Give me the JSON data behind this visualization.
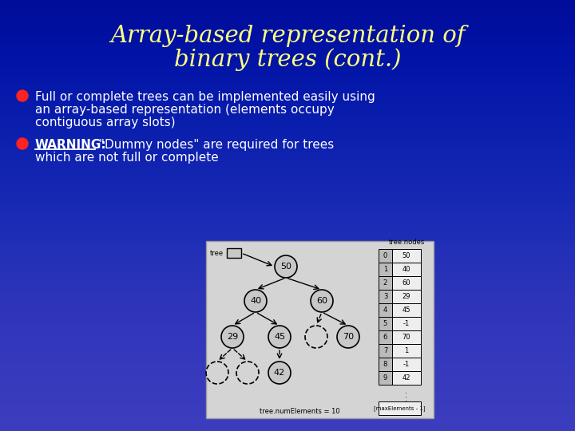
{
  "title_line1": "Array-based representation of",
  "title_line2": "binary trees (cont.)",
  "title_color": "#FFFF80",
  "bg_color": "#0000AA",
  "bullet_color": "#FF2222",
  "text_color": "#FFFFFF",
  "bullet1_text1": "Full or complete trees can be implemented easily using",
  "bullet1_text2": "an array-based representation (elements occupy",
  "bullet1_text3": "contiguous array slots)",
  "bullet2_warning": "WARNING:",
  "bullet2_text1": " \"Dummy nodes\" are required for trees",
  "bullet2_text2": "which are not full or complete",
  "array_label": "tree.nodes",
  "bottom_label1": "[maxElements - 1]",
  "bottom_label2": "tree.numElements = 10",
  "nodes_display": [
    50,
    40,
    60,
    29,
    45,
    -1,
    70,
    1,
    -1,
    42
  ],
  "indices_display": [
    0,
    1,
    2,
    3,
    4,
    5,
    6,
    7,
    8,
    9
  ]
}
